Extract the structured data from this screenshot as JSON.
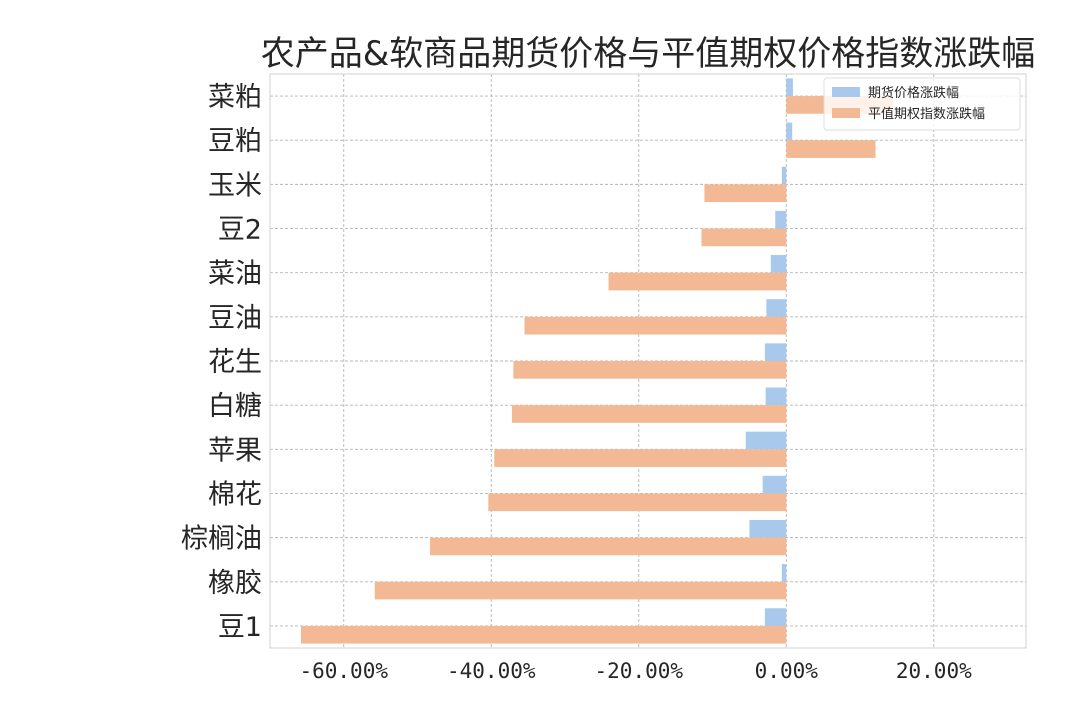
{
  "chart_data": {
    "type": "bar",
    "orientation": "horizontal",
    "title": "农产品&软商品期货价格与平值期权价格指数涨跌幅",
    "xlabel": "",
    "ylabel": "",
    "categories": [
      "菜粕",
      "豆粕",
      "玉米",
      "豆2",
      "菜油",
      "豆油",
      "花生",
      "白糖",
      "苹果",
      "棉花",
      "棕榈油",
      "橡胶",
      "豆1"
    ],
    "series": [
      {
        "name": "期货价格涨跌幅",
        "color": "#a8c8ec",
        "values": [
          0.9,
          0.8,
          -0.6,
          -1.5,
          -2.1,
          -2.7,
          -2.9,
          -2.8,
          -5.5,
          -3.2,
          -5.0,
          -0.6,
          -2.9
        ]
      },
      {
        "name": "平值期权指数涨跌幅",
        "color": "#f2b994",
        "values": [
          14.5,
          12.1,
          -11.1,
          -11.5,
          -24.1,
          -35.5,
          -37.0,
          -37.2,
          -39.6,
          -40.4,
          -48.3,
          -55.8,
          -65.8
        ]
      }
    ],
    "xlim": [
      -70.0,
      32.5
    ],
    "xticks": [
      -60,
      -40,
      -20,
      0,
      20
    ],
    "xtick_labels": [
      "-60.00%",
      "-40.00%",
      "-20.00%",
      "0.00%",
      "20.00%"
    ],
    "grid": true,
    "legend_position": "upper right"
  }
}
